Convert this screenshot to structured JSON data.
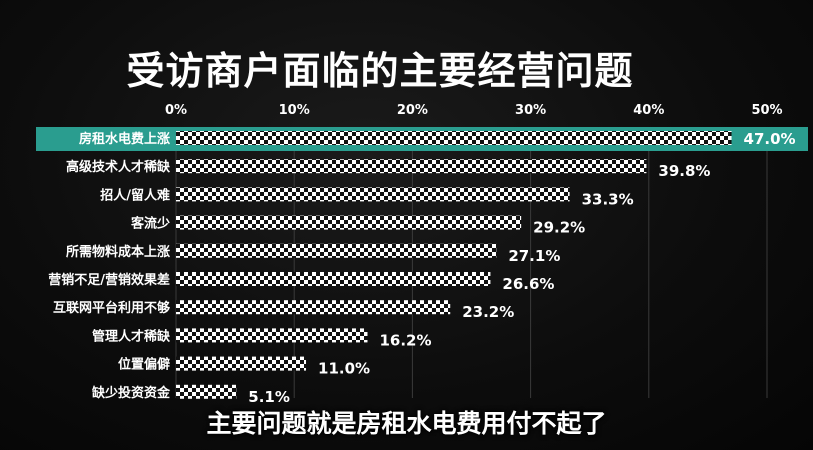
{
  "chart_data": {
    "type": "bar",
    "orientation": "horizontal",
    "title": "受访商户面临的主要经营问题",
    "categories": [
      "房租水电费上涨",
      "高级技术人才稀缺",
      "招人/留人难",
      "客流少",
      "所需物料成本上涨",
      "营销不足/营销效果差",
      "互联网平台利用不够",
      "管理人才稀缺",
      "位置偏僻",
      "缺少投资资金"
    ],
    "values": [
      47.0,
      39.8,
      33.3,
      29.2,
      27.1,
      26.6,
      23.2,
      16.2,
      11.0,
      5.1
    ],
    "value_labels": [
      "47.0%",
      "39.8%",
      "33.3%",
      "29.2%",
      "27.1%",
      "26.6%",
      "23.2%",
      "16.2%",
      "11.0%",
      "5.1%"
    ],
    "x_ticks": [
      "0%",
      "10%",
      "20%",
      "30%",
      "40%",
      "50%"
    ],
    "x_tick_values": [
      0,
      10,
      20,
      30,
      40,
      50
    ],
    "xlim": [
      0,
      50
    ],
    "grid": true,
    "highlight_index": 0,
    "colors": {
      "highlight": "#2a9d8f",
      "bar_light": "#ffffff",
      "bar_dark": "#111111"
    }
  },
  "caption": "主要问题就是房租水电费用付不起了"
}
